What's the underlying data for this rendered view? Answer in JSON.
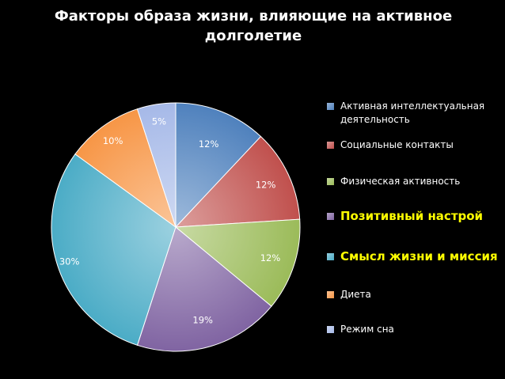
{
  "chart_data": {
    "type": "pie",
    "title": "Факторы образа жизни, влияющие на активное долголетие",
    "legend_position": "right",
    "slices": [
      {
        "label": "Активная интеллектуальная деятельность",
        "value": 12,
        "display": "12%",
        "color": "#4f81bd",
        "highlight": false
      },
      {
        "label": "Социальные контакты",
        "value": 12,
        "display": "12%",
        "color": "#c0504d",
        "highlight": false
      },
      {
        "label": "Физическая активность",
        "value": 12,
        "display": "12%",
        "color": "#9bbb59",
        "highlight": false
      },
      {
        "label": "Позитивный настрой",
        "value": 19,
        "display": "19%",
        "color": "#8064a2",
        "highlight": true
      },
      {
        "label": "Смысл жизни и миссия",
        "value": 30,
        "display": "30%",
        "color": "#4bacc6",
        "highlight": true
      },
      {
        "label": "Диета",
        "value": 10,
        "display": "10%",
        "color": "#f79646",
        "highlight": false
      },
      {
        "label": "Режим сна",
        "value": 5,
        "display": "5%",
        "color": "#a6b9e8",
        "highlight": false
      }
    ]
  }
}
